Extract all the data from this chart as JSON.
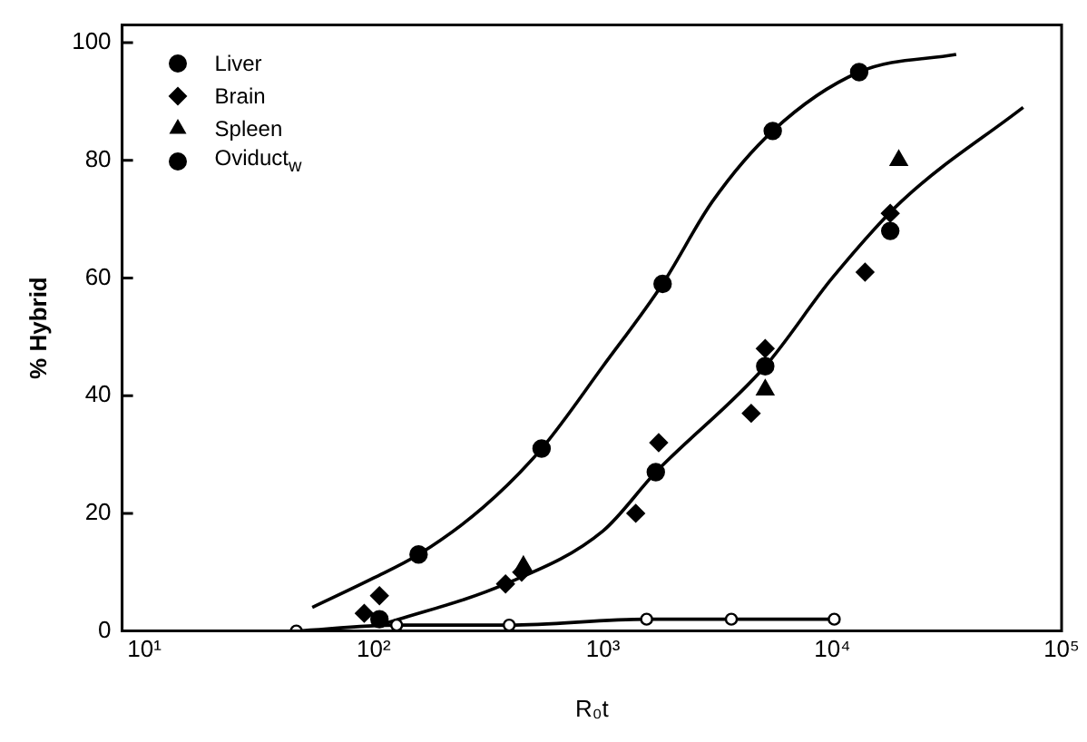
{
  "chart_data": {
    "type": "scatter",
    "xlabel": "R₀t",
    "ylabel": "% Hybrid",
    "log": "x",
    "grid": false,
    "legend": "top left",
    "xlim": [
      8,
      100000
    ],
    "xticks": [
      {
        "value": 10,
        "label": "10¹"
      },
      {
        "value": 100,
        "label": "10²"
      },
      {
        "value": 1000,
        "label": "10³"
      },
      {
        "value": 10000,
        "label": "10⁴"
      },
      {
        "value": 100000,
        "label": "10⁵"
      }
    ],
    "ylim": [
      0,
      103
    ],
    "yticks": [
      0,
      20,
      40,
      60,
      80,
      100
    ],
    "series": [
      {
        "name": "Liver",
        "type": "scatter",
        "marker": "circle",
        "color": "#000000",
        "x": [
          106,
          1700,
          5100,
          17900
        ],
        "values": [
          2,
          27,
          45,
          68
        ]
      },
      {
        "name": "Brain",
        "type": "scatter",
        "marker": "diamond",
        "color": "#000000",
        "x": [
          91,
          106,
          376,
          442,
          1390,
          1750,
          4430,
          5100,
          13900,
          17900
        ],
        "values": [
          3,
          6,
          8,
          10,
          20,
          32,
          37,
          48,
          61,
          71
        ]
      },
      {
        "name": "Spleen",
        "type": "scatter",
        "marker": "triangle",
        "color": "#000000",
        "x": [
          450,
          5100,
          19500
        ],
        "values": [
          11,
          41,
          80
        ]
      },
      {
        "name": "Oviduct$_{w}$",
        "type": "scatter",
        "marker": "circle",
        "color": "#000000",
        "x": [
          157,
          540,
          1820,
          5500,
          13100
        ],
        "values": [
          13,
          31,
          59,
          85,
          95
        ]
      },
      {
        "type": "line",
        "marker": "circle",
        "color": "#000000",
        "x": [
          46,
          126,
          390,
          1550,
          3630,
          10200
        ],
        "values": [
          0,
          1,
          1,
          2,
          2,
          2
        ]
      },
      {
        "type": "line",
        "marker": "none",
        "color": "#000000",
        "x": [
          54,
          100,
          157,
          300,
          540,
          1000,
          1820,
          3000,
          5500,
          13100,
          34700
        ],
        "values": [
          4,
          9,
          13,
          21,
          31,
          45,
          59,
          73,
          85,
          95,
          98
        ]
      },
      {
        "type": "line",
        "marker": "none",
        "color": "#000000",
        "x": [
          107,
          376,
          1000,
          1700,
          5100,
          10000,
          20000,
          68000
        ],
        "values": [
          1,
          8,
          17,
          27,
          45,
          60,
          73,
          89
        ]
      }
    ]
  }
}
